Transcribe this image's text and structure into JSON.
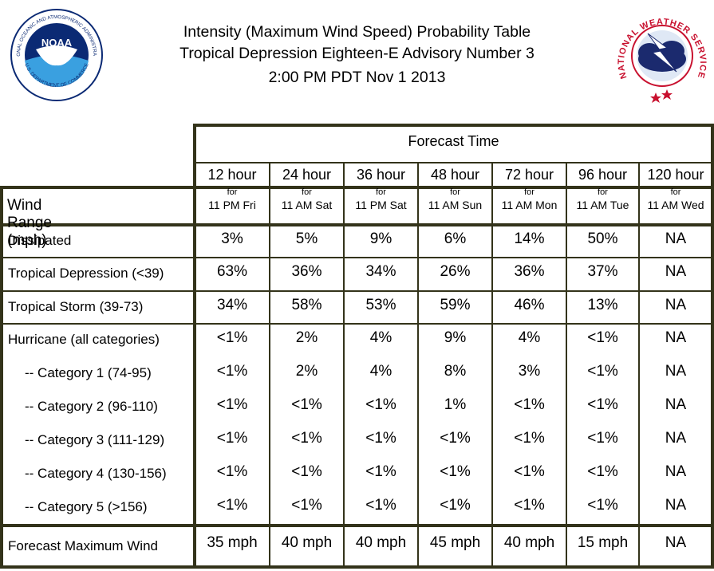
{
  "header": {
    "line1": "Intensity (Maximum Wind Speed) Probability Table",
    "line2": "Tropical Depression Eighteen-E Advisory Number 3",
    "line3": "2:00 PM PDT Nov 1 2013"
  },
  "logos": {
    "noaa_text": "NOAA",
    "noaa_ring": "NATIONAL OCEANIC AND ATMOSPHERIC ADMINISTRATION",
    "noaa_ring_bottom": "U.S. DEPARTMENT OF COMMERCE",
    "nws_ring": "NATIONAL WEATHER SERVICE",
    "noaa_color": "#0b2a74",
    "nws_color": "#c8102e"
  },
  "table": {
    "forecast_time_label": "Forecast Time",
    "wind_range_label": "Wind Range (mph)",
    "columns": [
      {
        "hour": "12 hour",
        "for": "for",
        "when": "11 PM Fri"
      },
      {
        "hour": "24 hour",
        "for": "for",
        "when": "11 AM Sat"
      },
      {
        "hour": "36 hour",
        "for": "for",
        "when": "11 PM Sat"
      },
      {
        "hour": "48 hour",
        "for": "for",
        "when": "11 AM Sun"
      },
      {
        "hour": "72 hour",
        "for": "for",
        "when": "11 AM Mon"
      },
      {
        "hour": "96 hour",
        "for": "for",
        "when": "11 AM Tue"
      },
      {
        "hour": "120 hour",
        "for": "for",
        "when": "11 AM Wed"
      }
    ],
    "rows": [
      {
        "label": "Dissipated",
        "values": [
          "3%",
          "5%",
          "9%",
          "6%",
          "14%",
          "50%",
          "NA"
        ]
      },
      {
        "label": "Tropical Depression (<39)",
        "values": [
          "63%",
          "36%",
          "34%",
          "26%",
          "36%",
          "37%",
          "NA"
        ]
      },
      {
        "label": "Tropical Storm (39-73)",
        "values": [
          "34%",
          "58%",
          "53%",
          "59%",
          "46%",
          "13%",
          "NA"
        ]
      },
      {
        "label": "Hurricane (all categories)",
        "values": [
          "<1%",
          "2%",
          "4%",
          "9%",
          "4%",
          "<1%",
          "NA"
        ]
      },
      {
        "label": "-- Category 1 (74-95)",
        "values": [
          "<1%",
          "2%",
          "4%",
          "8%",
          "3%",
          "<1%",
          "NA"
        ]
      },
      {
        "label": "-- Category 2 (96-110)",
        "values": [
          "<1%",
          "<1%",
          "<1%",
          "1%",
          "<1%",
          "<1%",
          "NA"
        ]
      },
      {
        "label": "-- Category 3 (111-129)",
        "values": [
          "<1%",
          "<1%",
          "<1%",
          "<1%",
          "<1%",
          "<1%",
          "NA"
        ]
      },
      {
        "label": "-- Category 4 (130-156)",
        "values": [
          "<1%",
          "<1%",
          "<1%",
          "<1%",
          "<1%",
          "<1%",
          "NA"
        ]
      },
      {
        "label": "-- Category 5 (>156)",
        "values": [
          "<1%",
          "<1%",
          "<1%",
          "<1%",
          "<1%",
          "<1%",
          "NA"
        ]
      },
      {
        "label": "Forecast Maximum Wind",
        "values": [
          "35 mph",
          "40 mph",
          "40 mph",
          "45 mph",
          "40 mph",
          "15 mph",
          "NA"
        ]
      }
    ]
  }
}
